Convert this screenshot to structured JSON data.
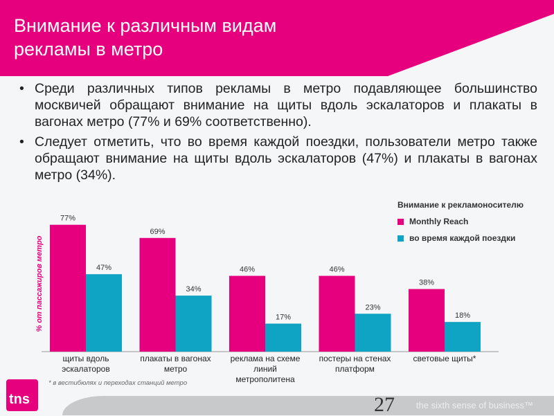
{
  "title": [
    "Внимание к различным видам",
    "рекламы в метро"
  ],
  "bullets": [
    "Среди различных типов рекламы в метро подавляющее большинство москвичей обращают внимание на щиты вдоль эскалаторов и плакаты в вагонах метро (77% и 69% соответственно).",
    "Следует отметить, что во время каждой поездки, пользователи метро также обращают внимание на щиты вдоль эскалаторов (47%) и плакаты в вагонах метро (34%)."
  ],
  "chart_data": {
    "type": "bar",
    "title": "",
    "ylabel": "% от пассажиров метро",
    "xlabel": "",
    "ylim": [
      0,
      80
    ],
    "categories": [
      [
        "щиты вдоль",
        "эскалаторов"
      ],
      [
        "плакаты в вагонах",
        "метро"
      ],
      [
        "реклама на схеме",
        "линий",
        "метрополитена"
      ],
      [
        "постеры на стенах",
        "платформ"
      ],
      [
        "световые щиты*"
      ]
    ],
    "legend_title": "Внимание к рекламоносителю",
    "legend_position": "top-right",
    "series": [
      {
        "name": "Monthly Reach",
        "color": "#e6007e",
        "values": [
          77,
          69,
          46,
          46,
          38
        ]
      },
      {
        "name": "во время каждой поездки",
        "color": "#0fa3c4",
        "values": [
          47,
          34,
          17,
          23,
          18
        ]
      }
    ]
  },
  "footnote": "* в вестибюлях и переходах станций метро",
  "logo": "tns",
  "tagline": "the sixth sense of business™",
  "page_number": "27"
}
